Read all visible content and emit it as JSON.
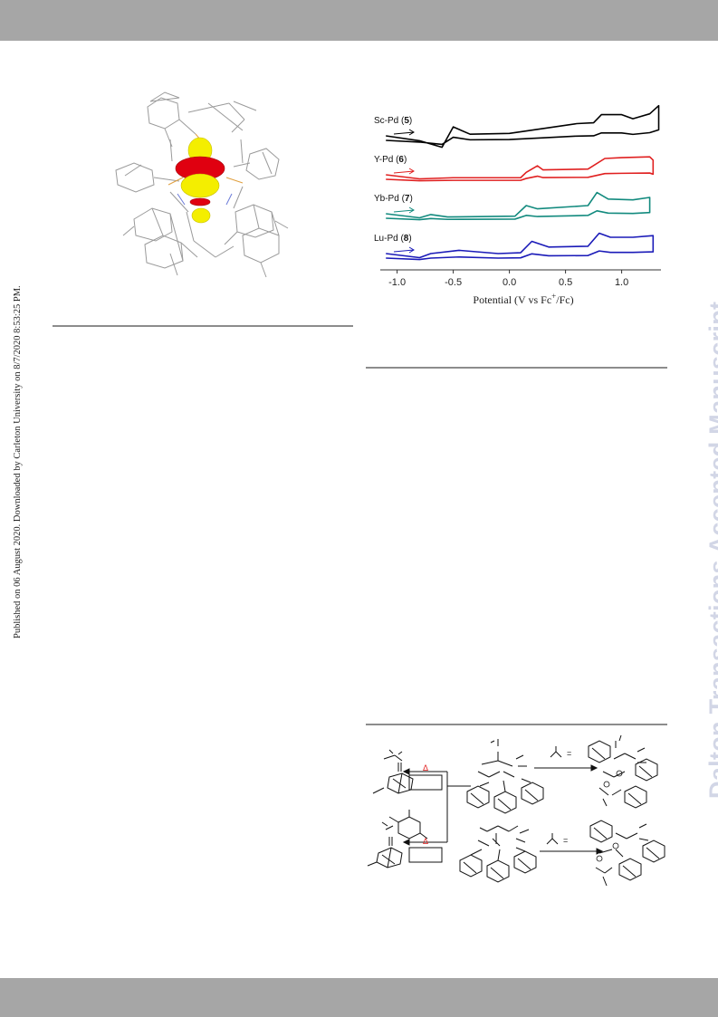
{
  "side_note": "Published on 06 August 2020. Downloaded by Carleton University on 8/7/2020 8:53:25 PM.",
  "watermark": "Dalton Transactions Accepted Manuscript",
  "colors": {
    "bars": "#a6a6a6",
    "watermark": "#d2d6e6",
    "sc_pd": "#000000",
    "y_pd": "#e02020",
    "yb_pd": "#128a7e",
    "lu_pd": "#1a1ab8",
    "lobe_red": "#e00010",
    "lobe_yellow": "#f4ee00"
  },
  "chart_data": {
    "type": "line",
    "xlabel": "Potential (V vs Fc+/Fc)",
    "xlim": [
      -1.15,
      1.35
    ],
    "x_ticks": [
      "-1.0",
      "-0.5",
      "0.0",
      "0.5",
      "1.0"
    ],
    "series": [
      {
        "name": "Sc-Pd",
        "compound_no": "5",
        "color": "#000000",
        "points": [
          [
            -1.1,
            0
          ],
          [
            -0.8,
            -0.3
          ],
          [
            -0.6,
            -0.7
          ],
          [
            -0.5,
            0.55
          ],
          [
            -0.35,
            0.1
          ],
          [
            0,
            0.15
          ],
          [
            0.3,
            0.45
          ],
          [
            0.6,
            0.75
          ],
          [
            0.75,
            0.8
          ],
          [
            0.82,
            1.3
          ],
          [
            1.0,
            1.3
          ],
          [
            1.1,
            1.05
          ],
          [
            1.25,
            1.35
          ],
          [
            1.33,
            1.85
          ]
        ]
      },
      {
        "name": "Y-Pd",
        "compound_no": "6",
        "color": "#e02020",
        "points": [
          [
            -1.1,
            0
          ],
          [
            -0.8,
            -0.25
          ],
          [
            -0.5,
            -0.18
          ],
          [
            0.1,
            -0.18
          ],
          [
            0.15,
            0.15
          ],
          [
            0.25,
            0.55
          ],
          [
            0.3,
            0.3
          ],
          [
            0.7,
            0.35
          ],
          [
            0.85,
            1.0
          ],
          [
            1.0,
            1.05
          ],
          [
            1.25,
            1.1
          ],
          [
            1.28,
            0.9
          ]
        ]
      },
      {
        "name": "Yb-Pd",
        "compound_no": "7",
        "color": "#128a7e",
        "points": [
          [
            -1.1,
            0
          ],
          [
            -0.8,
            -0.25
          ],
          [
            -0.7,
            -0.05
          ],
          [
            -0.55,
            -0.2
          ],
          [
            0.05,
            -0.15
          ],
          [
            0.15,
            0.5
          ],
          [
            0.25,
            0.3
          ],
          [
            0.7,
            0.5
          ],
          [
            0.78,
            1.3
          ],
          [
            0.88,
            0.9
          ],
          [
            1.1,
            0.85
          ],
          [
            1.25,
            1.0
          ]
        ]
      },
      {
        "name": "Lu-Pd",
        "compound_no": "8",
        "color": "#1a1ab8",
        "points": [
          [
            -1.1,
            0
          ],
          [
            -0.8,
            -0.25
          ],
          [
            -0.7,
            0
          ],
          [
            -0.45,
            0.2
          ],
          [
            -0.1,
            0
          ],
          [
            0.1,
            0.05
          ],
          [
            0.2,
            0.75
          ],
          [
            0.35,
            0.4
          ],
          [
            0.7,
            0.45
          ],
          [
            0.8,
            1.25
          ],
          [
            0.9,
            1.0
          ],
          [
            1.1,
            1.0
          ],
          [
            1.28,
            1.1
          ]
        ]
      }
    ]
  },
  "scheme": {
    "heat_symbol": "Δ",
    "arrow_label": "="
  }
}
